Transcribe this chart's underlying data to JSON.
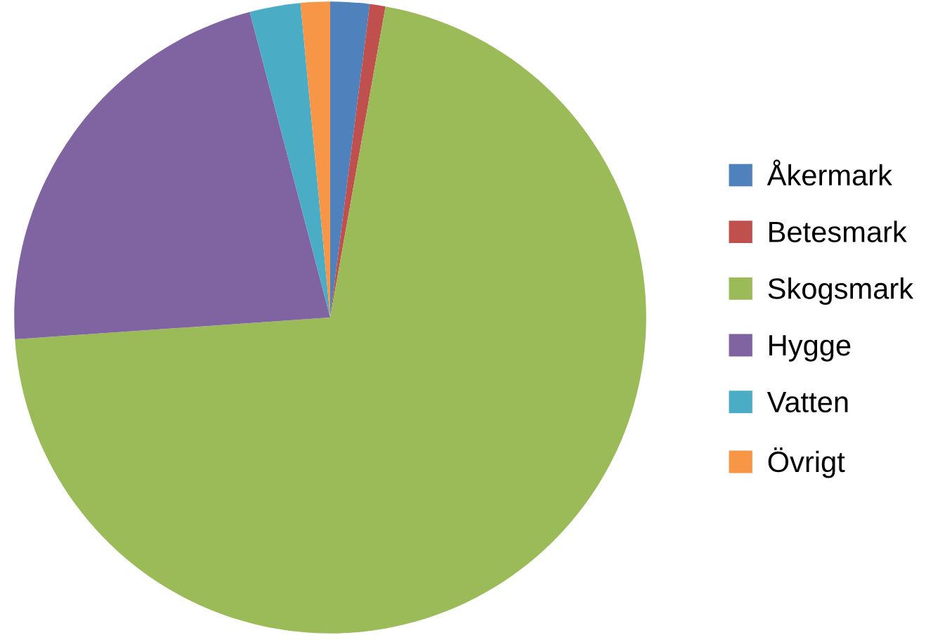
{
  "chart_data": {
    "type": "pie",
    "categories": [
      "Åkermark",
      "Betesmark",
      "Skogsmark",
      "Hygge",
      "Vatten",
      "Övrigt"
    ],
    "values": [
      2.0,
      0.8,
      71.1,
      22.0,
      2.6,
      1.5
    ],
    "colors": [
      "#4f81bd",
      "#c0504d",
      "#9bbb59",
      "#8064a2",
      "#4bacc6",
      "#f79646"
    ],
    "legend": "right"
  }
}
